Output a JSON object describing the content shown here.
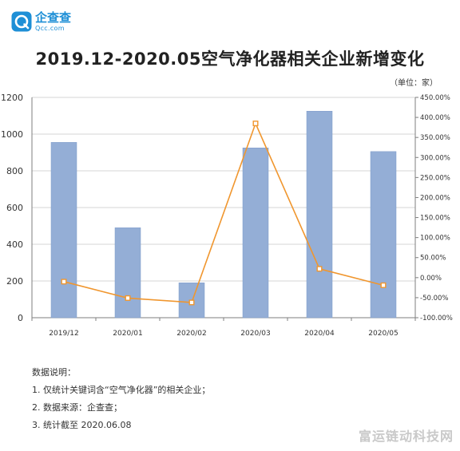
{
  "logo": {
    "name": "企查查",
    "domain": "Qcc.com"
  },
  "title": "2019.12-2020.05空气净化器相关企业新增变化",
  "unit": "（单位：家）",
  "notes": {
    "heading": "数据说明：",
    "items": [
      "1. 仅统计关键词含“空气净化器”的相关企业；",
      "2. 数据来源：企查查；",
      "3. 统计截至 2020.06.08"
    ]
  },
  "watermark": "富运链动科技网",
  "colors": {
    "bar": "#94aed6",
    "bar_stroke": "#7f9bc9",
    "line": "#f0962e",
    "grid": "#d4d4d4",
    "axis": "#7f7f7f"
  },
  "chart_data": {
    "type": "bar",
    "categories": [
      "2019/12",
      "2020/01",
      "2020/02",
      "2020/03",
      "2020/04",
      "2020/05"
    ],
    "series": [
      {
        "axis": "left",
        "type": "bar",
        "values": [
          955,
          490,
          190,
          925,
          1125,
          905
        ]
      },
      {
        "axis": "right",
        "type": "line",
        "values": [
          -10,
          -51,
          -62,
          385,
          22,
          -19
        ]
      }
    ],
    "ylim": [
      0,
      1200
    ],
    "yticks": [
      "0",
      "200",
      "400",
      "600",
      "800",
      "1000",
      "1200"
    ],
    "y2lim": [
      -100,
      450
    ],
    "y2ticks": [
      "-100.00%",
      "-50.00%",
      "0.00%",
      "50.00%",
      "100.00%",
      "150.00%",
      "200.00%",
      "250.00%",
      "300.00%",
      "350.00%",
      "400.00%",
      "450.00%"
    ],
    "grid": true,
    "legend": "none"
  }
}
